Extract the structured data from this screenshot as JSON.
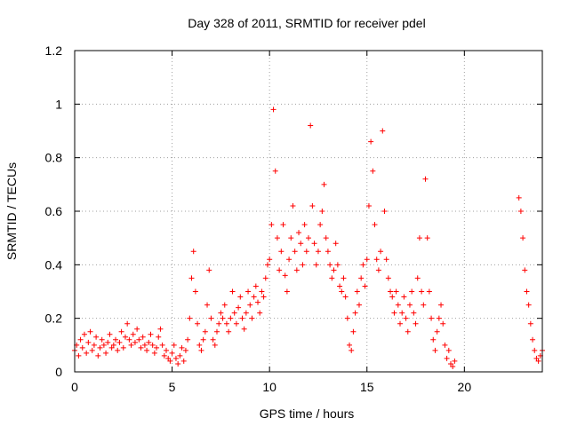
{
  "chart_data": {
    "type": "scatter",
    "title": "Day 328 of 2011, SRMTID for receiver pdel",
    "xlabel": "GPS time / hours",
    "ylabel": "SRMTID / TECUs",
    "xlim": [
      0,
      24
    ],
    "ylim": [
      0,
      1.2
    ],
    "xticks": [
      0,
      5,
      10,
      15,
      20
    ],
    "xtick_labels": [
      "0",
      "5",
      "10",
      "15",
      "20"
    ],
    "yticks": [
      0,
      0.2,
      0.4,
      0.6,
      0.8,
      1,
      1.2
    ],
    "ytick_labels": [
      "0",
      "0.2",
      "0.4",
      "0.6",
      "0.8",
      "1",
      "1.2"
    ],
    "grid": true,
    "marker": "+",
    "color": "#ff0000",
    "series": [
      {
        "name": "SRMTID",
        "x": [
          0.0,
          0.1,
          0.2,
          0.3,
          0.4,
          0.5,
          0.6,
          0.7,
          0.8,
          0.9,
          1.0,
          1.1,
          1.2,
          1.3,
          1.4,
          1.5,
          1.6,
          1.7,
          1.8,
          1.9,
          2.0,
          2.1,
          2.2,
          2.3,
          2.4,
          2.5,
          2.6,
          2.7,
          2.8,
          2.9,
          3.0,
          3.1,
          3.2,
          3.3,
          3.4,
          3.5,
          3.6,
          3.7,
          3.8,
          3.9,
          4.0,
          4.1,
          4.2,
          4.3,
          4.4,
          4.5,
          4.6,
          4.7,
          4.8,
          4.9,
          5.0,
          5.1,
          5.2,
          5.3,
          5.4,
          5.5,
          5.6,
          5.7,
          5.8,
          5.9,
          6.0,
          6.1,
          6.2,
          6.3,
          6.4,
          6.5,
          6.6,
          6.7,
          6.8,
          6.9,
          7.0,
          7.1,
          7.2,
          7.3,
          7.4,
          7.5,
          7.6,
          7.7,
          7.8,
          7.9,
          8.0,
          8.1,
          8.2,
          8.3,
          8.4,
          8.5,
          8.6,
          8.7,
          8.8,
          8.9,
          9.0,
          9.1,
          9.2,
          9.3,
          9.4,
          9.5,
          9.6,
          9.7,
          9.8,
          9.9,
          10.0,
          10.1,
          10.2,
          10.3,
          10.4,
          10.5,
          10.6,
          10.7,
          10.8,
          10.9,
          11.0,
          11.1,
          11.2,
          11.3,
          11.4,
          11.5,
          11.6,
          11.7,
          11.8,
          11.9,
          12.0,
          12.1,
          12.2,
          12.3,
          12.4,
          12.5,
          12.6,
          12.7,
          12.8,
          12.9,
          13.0,
          13.1,
          13.2,
          13.3,
          13.4,
          13.5,
          13.6,
          13.7,
          13.8,
          13.9,
          14.0,
          14.1,
          14.2,
          14.3,
          14.4,
          14.5,
          14.6,
          14.7,
          14.8,
          14.9,
          15.0,
          15.1,
          15.2,
          15.3,
          15.4,
          15.5,
          15.6,
          15.7,
          15.8,
          15.9,
          16.0,
          16.1,
          16.2,
          16.3,
          16.4,
          16.5,
          16.6,
          16.7,
          16.8,
          16.9,
          17.0,
          17.1,
          17.2,
          17.3,
          17.4,
          17.5,
          17.6,
          17.7,
          17.8,
          17.9,
          18.0,
          18.1,
          18.2,
          18.3,
          18.4,
          18.5,
          18.6,
          18.7,
          18.8,
          18.9,
          19.0,
          19.1,
          19.2,
          19.3,
          19.4,
          19.5,
          22.8,
          22.9,
          23.0,
          23.1,
          23.2,
          23.3,
          23.4,
          23.5,
          23.6,
          23.7,
          23.8,
          23.9,
          24.0
        ],
        "y": [
          0.08,
          0.1,
          0.06,
          0.12,
          0.09,
          0.14,
          0.07,
          0.11,
          0.15,
          0.08,
          0.1,
          0.13,
          0.06,
          0.09,
          0.12,
          0.1,
          0.07,
          0.11,
          0.14,
          0.09,
          0.1,
          0.12,
          0.08,
          0.11,
          0.15,
          0.09,
          0.13,
          0.18,
          0.12,
          0.1,
          0.14,
          0.11,
          0.16,
          0.12,
          0.09,
          0.13,
          0.1,
          0.08,
          0.11,
          0.14,
          0.1,
          0.07,
          0.09,
          0.13,
          0.16,
          0.1,
          0.06,
          0.08,
          0.05,
          0.04,
          0.07,
          0.1,
          0.05,
          0.03,
          0.06,
          0.09,
          0.04,
          0.08,
          0.12,
          0.2,
          0.35,
          0.45,
          0.3,
          0.18,
          0.1,
          0.08,
          0.12,
          0.15,
          0.25,
          0.38,
          0.2,
          0.12,
          0.1,
          0.15,
          0.18,
          0.22,
          0.2,
          0.25,
          0.18,
          0.15,
          0.2,
          0.3,
          0.22,
          0.18,
          0.24,
          0.28,
          0.2,
          0.16,
          0.22,
          0.3,
          0.25,
          0.2,
          0.28,
          0.32,
          0.26,
          0.22,
          0.3,
          0.28,
          0.35,
          0.4,
          0.42,
          0.55,
          0.98,
          0.75,
          0.5,
          0.38,
          0.45,
          0.55,
          0.36,
          0.3,
          0.42,
          0.5,
          0.62,
          0.45,
          0.38,
          0.52,
          0.48,
          0.4,
          0.55,
          0.45,
          0.5,
          0.92,
          0.62,
          0.48,
          0.4,
          0.45,
          0.55,
          0.6,
          0.7,
          0.5,
          0.45,
          0.4,
          0.35,
          0.38,
          0.48,
          0.4,
          0.32,
          0.3,
          0.35,
          0.28,
          0.2,
          0.1,
          0.08,
          0.15,
          0.22,
          0.3,
          0.25,
          0.35,
          0.4,
          0.32,
          0.42,
          0.62,
          0.86,
          0.75,
          0.55,
          0.42,
          0.38,
          0.45,
          0.9,
          0.6,
          0.42,
          0.35,
          0.3,
          0.28,
          0.22,
          0.3,
          0.25,
          0.18,
          0.22,
          0.28,
          0.2,
          0.15,
          0.25,
          0.3,
          0.22,
          0.18,
          0.35,
          0.5,
          0.3,
          0.25,
          0.72,
          0.5,
          0.3,
          0.2,
          0.12,
          0.08,
          0.15,
          0.2,
          0.25,
          0.18,
          0.1,
          0.05,
          0.08,
          0.03,
          0.02,
          0.04,
          0.65,
          0.6,
          0.5,
          0.38,
          0.3,
          0.25,
          0.18,
          0.12,
          0.08,
          0.05,
          0.04,
          0.06,
          0.08
        ]
      }
    ]
  }
}
